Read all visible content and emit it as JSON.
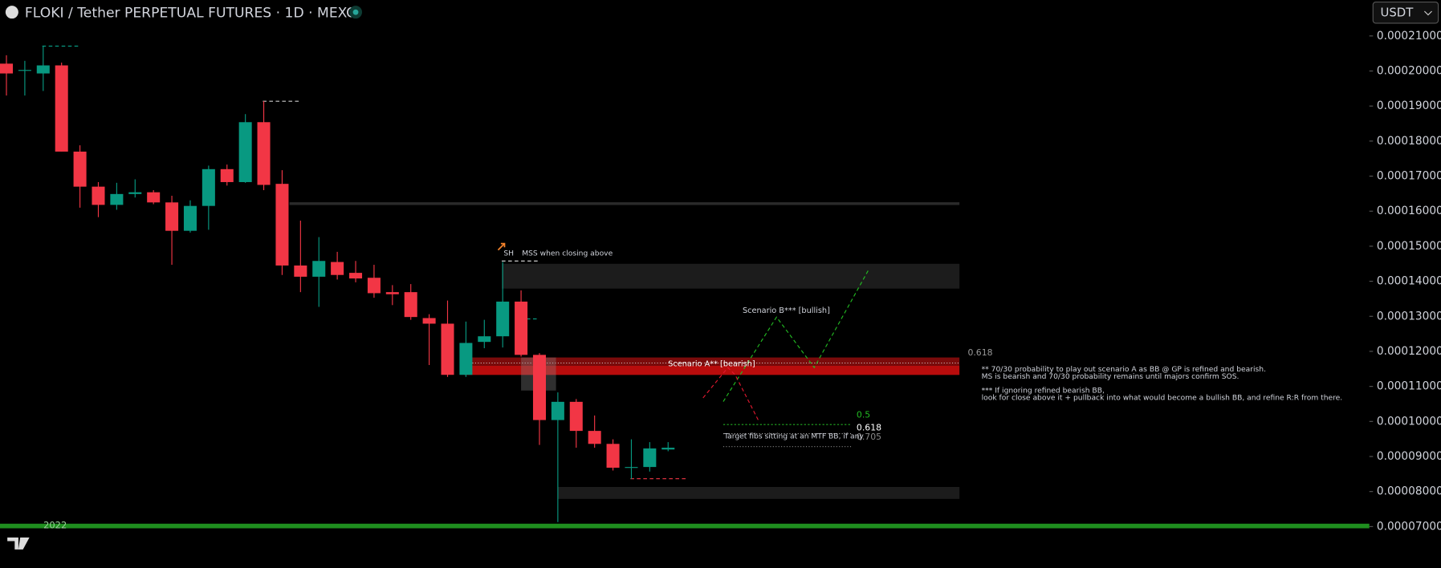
{
  "chart_data": {
    "type": "candlestick",
    "title": "FLOKI / Tether PERPETUAL FUTURES · 1D · MEXC",
    "currency": "USDT",
    "up_color": "#089981",
    "down_color": "#f23645",
    "categories": [
      null,
      null,
      null,
      "2022",
      null,
      null,
      null,
      null,
      null,
      null,
      null,
      null,
      null,
      null,
      null,
      null,
      null,
      null,
      null,
      null,
      null,
      null,
      null,
      null,
      null,
      null,
      null,
      null,
      null,
      null,
      null,
      null,
      null,
      null,
      null,
      null,
      null
    ],
    "open": [
      0.0002021,
      0.0002003,
      0.0001993,
      0.0002016,
      0.000177,
      0.000167,
      0.0001618,
      0.0001649,
      0.0001654,
      0.0001625,
      0.0001544,
      0.0001615,
      0.000172,
      0.0001683,
      0.0001854,
      0.0001678,
      0.0001445,
      0.0001413,
      0.0001455,
      0.0001424,
      0.000141,
      0.0001369,
      0.0001369,
      0.0001295,
      0.0001279,
      0.0001133,
      0.0001227,
      0.0001243,
      0.0001342,
      0.000119,
      0.0001004,
      0.0001056,
      9.73e-05,
      9.36e-05,
      8.7e-05,
      8.7e-05,
      9.2e-05
    ],
    "high": [
      0.0002045,
      0.0002029,
      0.0002071,
      0.0002024,
      0.0001788,
      0.0001683,
      0.0001681,
      0.0001691,
      0.000166,
      0.0001644,
      0.0001631,
      0.000173,
      0.0001733,
      0.0001877,
      0.0001914,
      0.0001717,
      0.0001573,
      0.0001526,
      0.0001484,
      0.0001458,
      0.0001447,
      0.0001389,
      0.0001392,
      0.0001306,
      0.0001345,
      0.0001285,
      0.000129,
      0.0001455,
      0.0001374,
      0.0001195,
      0.0001083,
      0.0001064,
      0.0001017,
      9.49e-05,
      9.49e-05,
      9.41e-05,
      9.41e-05
    ],
    "low": [
      0.000193,
      0.000193,
      0.0001943,
      0.000177,
      0.000161,
      0.0001583,
      0.0001604,
      0.0001639,
      0.000162,
      0.0001447,
      0.0001539,
      0.0001547,
      0.0001673,
      0.0001681,
      0.000166,
      0.0001418,
      0.0001369,
      0.0001327,
      0.0001405,
      0.0001397,
      0.0001353,
      0.0001332,
      0.000129,
      0.0001161,
      0.0001127,
      0.0001127,
      0.0001209,
      0.0001211,
      0.0001185,
      9.33e-05,
      7.13e-05,
      9.25e-05,
      9.25e-05,
      8.6e-05,
      8.36e-05,
      8.57e-05,
      9.15e-05
    ],
    "close": [
      0.0001993,
      0.0002003,
      0.0002016,
      0.000177,
      0.000167,
      0.0001618,
      0.0001649,
      0.0001654,
      0.0001625,
      0.0001544,
      0.0001615,
      0.000172,
      0.0001683,
      0.0001854,
      0.0001675,
      0.0001445,
      0.0001413,
      0.0001458,
      0.0001418,
      0.0001408,
      0.0001366,
      0.0001363,
      0.0001298,
      0.0001279,
      0.0001133,
      0.0001224,
      0.0001243,
      0.0001342,
      0.000119,
      0.0001004,
      0.0001056,
      9.73e-05,
      9.36e-05,
      8.68e-05,
      8.7e-05,
      9.23e-05,
      9.25e-05
    ],
    "ylim": [
      6.82e-05,
      0.0002202
    ],
    "yticks": [
      {
        "value": 0.00021,
        "label": "0.00021000"
      },
      {
        "value": 0.0002,
        "label": "0.00020000"
      },
      {
        "value": 0.00019,
        "label": "0.00019000"
      },
      {
        "value": 0.00018,
        "label": "0.00018000"
      },
      {
        "value": 0.00017,
        "label": "0.00017000"
      },
      {
        "value": 0.00016,
        "label": "0.00016000"
      },
      {
        "value": 0.00015,
        "label": "0.00015000"
      },
      {
        "value": 0.00014,
        "label": "0.00014000"
      },
      {
        "value": 0.00013,
        "label": "0.00013000"
      },
      {
        "value": 0.00012,
        "label": "0.00012000"
      },
      {
        "value": 0.00011,
        "label": "0.00011000"
      },
      {
        "value": 0.0001,
        "label": "0.00010000"
      },
      {
        "value": 9e-05,
        "label": "0.00009000"
      },
      {
        "value": 8e-05,
        "label": "0.00008000"
      },
      {
        "value": 7e-05,
        "label": "0.00007000"
      }
    ],
    "annotations": [
      "SH",
      "MSS when closing above",
      "Scenario B*** [bullish]",
      "Scenario A** [bearish]",
      "0.618",
      "** 70/30 probability to play out scenario A as BB @ GP is refined and bearish.",
      "MS is bearish and 70/30 probability remains until majors confirm SOS.",
      "*** If ignoring refined bearish BB,",
      "look for close above it + pullback into what would become a bullish BB, and refine R:R from there.",
      "0.5",
      "0.618",
      "0.705",
      "Target fibs sitting at an MTF BB, if any"
    ]
  }
}
